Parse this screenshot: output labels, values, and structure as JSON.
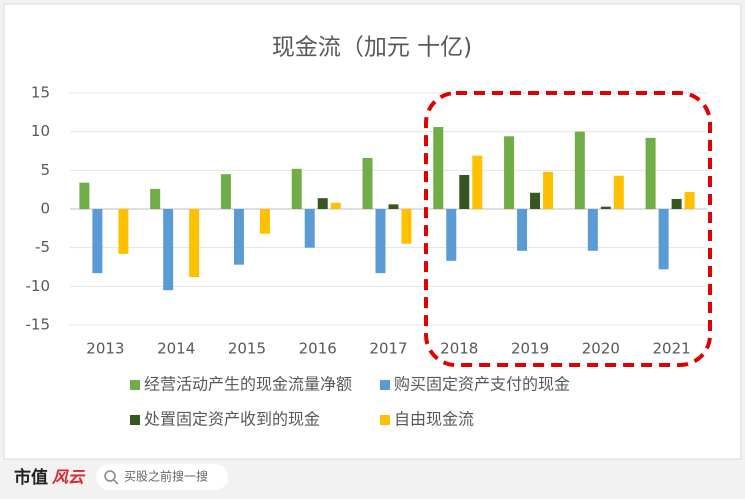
{
  "chart_data": {
    "type": "bar",
    "title": "现金流（加元 十亿)",
    "categories": [
      "2013",
      "2014",
      "2015",
      "2016",
      "2017",
      "2018",
      "2019",
      "2020",
      "2021"
    ],
    "series": [
      {
        "name": "经营活动产生的现金流量净额",
        "color": "#70ad47",
        "values": [
          3.4,
          2.6,
          4.5,
          5.2,
          6.6,
          10.6,
          9.4,
          10.0,
          9.2
        ]
      },
      {
        "name": "购买固定资产支付的现金",
        "color": "#5b9bd5",
        "values": [
          -8.3,
          -10.5,
          -7.2,
          -5.0,
          -8.3,
          -6.7,
          -5.4,
          -5.4,
          -7.8
        ]
      },
      {
        "name": "处置固定资产收到的现金",
        "color": "#375623",
        "values": [
          0,
          0,
          0,
          1.4,
          0.6,
          4.4,
          2.1,
          0.3,
          1.3
        ]
      },
      {
        "name": "自由现金流",
        "color": "#ffc000",
        "values": [
          -5.8,
          -8.8,
          -3.2,
          0.8,
          -4.5,
          6.9,
          4.8,
          4.3,
          2.2
        ]
      }
    ],
    "ylim": [
      -15,
      15
    ],
    "yticks": [
      -15,
      -10,
      -5,
      0,
      5,
      10,
      15
    ],
    "grid": true
  },
  "footer": {
    "logo_left": "市值",
    "logo_right": "风云",
    "search": "买股之前搜一搜"
  }
}
